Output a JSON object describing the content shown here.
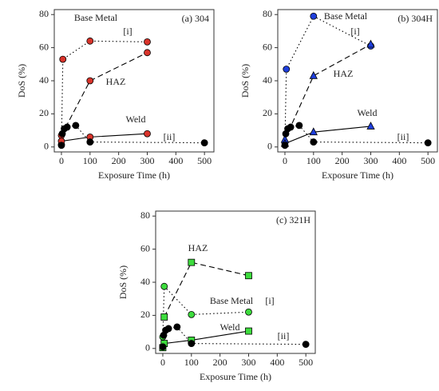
{
  "chart_data": [
    {
      "type": "line",
      "title": "(a) 304",
      "x_label": "Exposure Time (h)",
      "y_label": "DoS (%)",
      "xlim": [
        -25,
        533
      ],
      "ylim": [
        -3,
        83
      ],
      "xticks": [
        0,
        100,
        200,
        300,
        400,
        500
      ],
      "yticks": [
        0,
        20,
        40,
        60,
        80
      ],
      "annotations": [
        "[i]",
        "[ii]"
      ],
      "series": [
        {
          "name": "Base Metal",
          "color": "#d9342b",
          "marker": "circle",
          "line_style": "dotted",
          "x": [
            0,
            5,
            100,
            300
          ],
          "values": [
            1.5,
            53,
            64,
            63.5
          ]
        },
        {
          "name": "HAZ",
          "color": "#d9342b",
          "marker": "circle",
          "line_style": "dashed",
          "x": [
            0,
            100,
            300
          ],
          "values": [
            7,
            40,
            57
          ]
        },
        {
          "name": "Weld",
          "color": "#d9342b",
          "marker": "circle",
          "line_style": "solid",
          "x": [
            0,
            100,
            300
          ],
          "values": [
            3.5,
            6,
            8
          ]
        },
        {
          "color": "#000000",
          "marker": "circle",
          "line_style": "dotted",
          "x": [
            0,
            3,
            10,
            20,
            50,
            100,
            500
          ],
          "values": [
            1,
            8,
            11,
            12,
            13,
            3,
            2.5
          ]
        }
      ]
    },
    {
      "type": "line",
      "title": "(b) 304H",
      "x_label": "Exposure Time (h)",
      "y_label": "DoS (%)",
      "xlim": [
        -25,
        533
      ],
      "ylim": [
        -3,
        83
      ],
      "xticks": [
        0,
        100,
        200,
        300,
        400,
        500
      ],
      "yticks": [
        0,
        20,
        40,
        60,
        80
      ],
      "annotations": [
        "[i]",
        "[ii]"
      ],
      "series": [
        {
          "name": "Base Metal",
          "color": "#1f3fdc",
          "marker": "circle",
          "line_style": "dotted",
          "x": [
            0,
            5,
            100,
            300
          ],
          "values": [
            2.5,
            47,
            79,
            61
          ]
        },
        {
          "name": "HAZ",
          "color": "#1f3fdc",
          "marker": "triangle",
          "line_style": "dashed",
          "x": [
            0,
            100,
            300
          ],
          "values": [
            4.5,
            43,
            62
          ]
        },
        {
          "name": "Weld",
          "color": "#1f3fdc",
          "marker": "triangle",
          "line_style": "solid",
          "x": [
            0,
            100,
            300
          ],
          "values": [
            2,
            9,
            12.5
          ]
        },
        {
          "color": "#000000",
          "marker": "circle",
          "line_style": "dotted",
          "x": [
            0,
            3,
            10,
            20,
            50,
            100,
            500
          ],
          "values": [
            1,
            8,
            11,
            12,
            13,
            3,
            2.5
          ]
        }
      ]
    },
    {
      "type": "line",
      "title": "(c) 321H",
      "x_label": "Exposure Time (h)",
      "y_label": "DoS (%)",
      "xlim": [
        -25,
        533
      ],
      "ylim": [
        -3,
        83
      ],
      "xticks": [
        0,
        100,
        200,
        300,
        400,
        500
      ],
      "yticks": [
        0,
        20,
        40,
        60,
        80
      ],
      "annotations": [
        "[i]",
        "[ii]"
      ],
      "series": [
        {
          "name": "Base Metal",
          "color": "#3ddc3d",
          "marker": "circle",
          "line_style": "dotted",
          "x": [
            0,
            5,
            100,
            300
          ],
          "values": [
            7,
            37.5,
            20.5,
            22
          ]
        },
        {
          "name": "HAZ",
          "color": "#3ddc3d",
          "marker": "square",
          "line_style": "dashed",
          "x": [
            5,
            100,
            300
          ],
          "values": [
            19,
            52,
            44
          ]
        },
        {
          "name": "Weld",
          "color": "#3ddc3d",
          "marker": "square",
          "line_style": "solid",
          "x": [
            0,
            5,
            100,
            300
          ],
          "values": [
            0.5,
            3,
            5,
            10.5
          ]
        },
        {
          "color": "#000000",
          "marker": "circle",
          "line_style": "dotted",
          "x": [
            0,
            3,
            10,
            20,
            50,
            100,
            500
          ],
          "values": [
            1,
            8,
            11,
            12,
            13,
            3,
            2.5
          ]
        }
      ]
    }
  ]
}
